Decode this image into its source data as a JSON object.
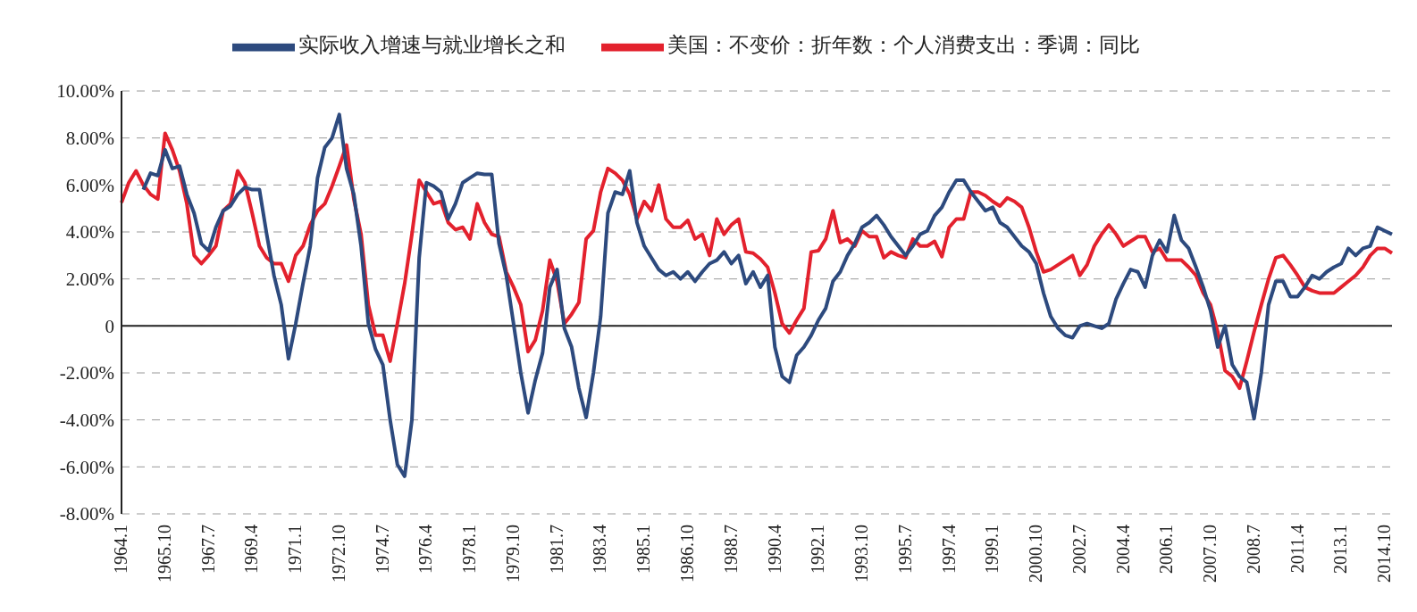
{
  "chart_data": {
    "type": "line",
    "categories": [
      "1964.1",
      null,
      null,
      null,
      null,
      null,
      "1965.10",
      null,
      null,
      null,
      null,
      null,
      "1967.7",
      null,
      null,
      null,
      null,
      null,
      "1969.4",
      null,
      null,
      null,
      null,
      null,
      "1971.1",
      null,
      null,
      null,
      null,
      null,
      "1972.10",
      null,
      null,
      null,
      null,
      null,
      "1974.7",
      null,
      null,
      null,
      null,
      null,
      "1976.4",
      null,
      null,
      null,
      null,
      null,
      "1978.1",
      null,
      null,
      null,
      null,
      null,
      "1979.10",
      null,
      null,
      null,
      null,
      null,
      "1981.7",
      null,
      null,
      null,
      null,
      null,
      "1983.4",
      null,
      null,
      null,
      null,
      null,
      "1985.1",
      null,
      null,
      null,
      null,
      null,
      "1986.10",
      null,
      null,
      null,
      null,
      null,
      "1988.7",
      null,
      null,
      null,
      null,
      null,
      "1990.4",
      null,
      null,
      null,
      null,
      null,
      "1992.1",
      null,
      null,
      null,
      null,
      null,
      "1993.10",
      null,
      null,
      null,
      null,
      null,
      "1995.7",
      null,
      null,
      null,
      null,
      null,
      "1997.4",
      null,
      null,
      null,
      null,
      null,
      "1999.1",
      null,
      null,
      null,
      null,
      null,
      "2000.10",
      null,
      null,
      null,
      null,
      null,
      "2002.7",
      null,
      null,
      null,
      null,
      null,
      "2004.4",
      null,
      null,
      null,
      null,
      null,
      "2006.1",
      null,
      null,
      null,
      null,
      null,
      "2007.10",
      null,
      null,
      null,
      null,
      null,
      "2008.7",
      null,
      null,
      null,
      null,
      null,
      "2011.4",
      null,
      null,
      null,
      null,
      null,
      "2013.1",
      null,
      null,
      null,
      null,
      null,
      "2014.10",
      null
    ],
    "series": [
      {
        "name": "美国：不变价：折年数：个人消费支出：季调：同比",
        "color": "#e3212d",
        "values": [
          5.25,
          6.1,
          6.6,
          6.0,
          5.6,
          5.4,
          8.2,
          7.5,
          6.6,
          5.2,
          3.0,
          2.65,
          3.0,
          3.4,
          4.9,
          5.2,
          6.6,
          6.1,
          4.8,
          3.4,
          2.9,
          2.65,
          2.65,
          1.9,
          3.0,
          3.4,
          4.3,
          4.9,
          5.2,
          5.95,
          6.8,
          7.7,
          5.4,
          3.9,
          0.9,
          -0.4,
          -0.4,
          -1.5,
          0.1,
          1.8,
          3.9,
          6.2,
          5.7,
          5.2,
          5.3,
          4.4,
          4.1,
          4.2,
          3.7,
          5.2,
          4.4,
          3.9,
          3.8,
          2.3,
          1.65,
          0.9,
          -1.1,
          -0.6,
          0.65,
          2.8,
          1.9,
          0.1,
          0.5,
          1.0,
          3.7,
          4.05,
          5.7,
          6.7,
          6.5,
          6.2,
          5.6,
          4.55,
          5.3,
          4.9,
          6.0,
          4.55,
          4.2,
          4.2,
          4.5,
          3.7,
          3.9,
          3.0,
          4.55,
          3.9,
          4.3,
          4.55,
          3.15,
          3.1,
          2.85,
          2.5,
          1.4,
          0.1,
          -0.3,
          0.25,
          0.75,
          3.15,
          3.2,
          3.7,
          4.9,
          3.55,
          3.7,
          3.4,
          4.05,
          3.8,
          3.8,
          2.9,
          3.15,
          3.0,
          2.9,
          3.7,
          3.4,
          3.4,
          3.6,
          2.95,
          4.2,
          4.55,
          4.55,
          5.7,
          5.7,
          5.55,
          5.3,
          5.1,
          5.45,
          5.3,
          5.05,
          4.2,
          3.15,
          2.3,
          2.4,
          2.6,
          2.8,
          3.0,
          2.15,
          2.6,
          3.4,
          3.9,
          4.3,
          3.9,
          3.4,
          3.6,
          3.8,
          3.8,
          3.15,
          3.3,
          2.8,
          2.8,
          2.8,
          2.5,
          2.15,
          1.4,
          0.9,
          -0.25,
          -1.9,
          -2.15,
          -2.65,
          -1.5,
          -0.25,
          0.9,
          2.0,
          2.9,
          3.0,
          2.6,
          2.15,
          1.65,
          1.5,
          1.4,
          1.4,
          1.4,
          1.65,
          1.9,
          2.15,
          2.5,
          3.0,
          3.3,
          3.3,
          3.1
        ]
      },
      {
        "name": "实际收入增速与就业增长之和",
        "color": "#2d4a7e",
        "values": [
          null,
          null,
          null,
          5.8,
          6.5,
          6.4,
          7.5,
          6.7,
          6.8,
          5.6,
          4.8,
          3.5,
          3.2,
          4.2,
          4.9,
          5.1,
          5.6,
          5.9,
          5.8,
          5.8,
          3.9,
          2.15,
          0.9,
          -1.4,
          0.1,
          1.8,
          3.4,
          6.3,
          7.6,
          8.0,
          9.0,
          6.7,
          5.6,
          3.4,
          0.1,
          -1.0,
          -1.65,
          -4.0,
          -5.9,
          -6.4,
          -4.0,
          2.9,
          6.1,
          5.95,
          5.7,
          4.55,
          5.2,
          6.1,
          6.3,
          6.5,
          6.45,
          6.45,
          3.5,
          2.15,
          0.1,
          -2.0,
          -3.7,
          -2.3,
          -1.15,
          1.65,
          2.4,
          -0.1,
          -0.9,
          -2.65,
          -3.9,
          -2.0,
          0.4,
          4.8,
          5.7,
          5.6,
          6.6,
          4.4,
          3.4,
          2.9,
          2.4,
          2.15,
          2.3,
          2.0,
          2.3,
          1.9,
          2.3,
          2.65,
          2.8,
          3.15,
          2.65,
          3.0,
          1.8,
          2.3,
          1.65,
          2.15,
          -0.9,
          -2.15,
          -2.4,
          -1.25,
          -0.9,
          -0.4,
          0.25,
          0.75,
          1.9,
          2.3,
          3.0,
          3.5,
          4.2,
          4.4,
          4.7,
          4.3,
          3.8,
          3.4,
          3.0,
          3.4,
          3.9,
          4.05,
          4.7,
          5.05,
          5.7,
          6.2,
          6.2,
          5.7,
          5.3,
          4.9,
          5.05,
          4.4,
          4.2,
          3.8,
          3.4,
          3.15,
          2.65,
          1.4,
          0.4,
          -0.1,
          -0.4,
          -0.5,
          0.0,
          0.1,
          0.0,
          -0.1,
          0.1,
          1.15,
          1.8,
          2.4,
          2.3,
          1.65,
          3.0,
          3.65,
          3.15,
          4.7,
          3.65,
          3.3,
          2.5,
          1.65,
          0.65,
          -0.9,
          0.0,
          -1.65,
          -2.15,
          -2.4,
          -3.95,
          -2.0,
          0.9,
          1.9,
          1.9,
          1.25,
          1.25,
          1.65,
          2.15,
          2.0,
          2.3,
          2.5,
          2.65,
          3.3,
          3.0,
          3.3,
          3.4,
          4.2,
          4.05,
          3.9
        ]
      }
    ],
    "ylim": [
      -8,
      10
    ],
    "yticks": [
      {
        "value": -8,
        "label": "-8.00%"
      },
      {
        "value": -6,
        "label": "-6.00%"
      },
      {
        "value": -4,
        "label": "-4.00%"
      },
      {
        "value": -2,
        "label": "-2.00%"
      },
      0,
      {
        "value": 2,
        "label": "2.00%"
      },
      {
        "value": 4,
        "label": "4.00%"
      },
      {
        "value": 6,
        "label": "6.00%"
      },
      {
        "value": 8,
        "label": "8.00%"
      },
      {
        "value": 10,
        "label": "10.00%"
      }
    ],
    "ref_lines": [
      {
        "axis": "y",
        "value": 0,
        "color": "#222222"
      }
    ],
    "grid": "y",
    "legend": "top",
    "marker": "none",
    "line_style": "solid"
  }
}
